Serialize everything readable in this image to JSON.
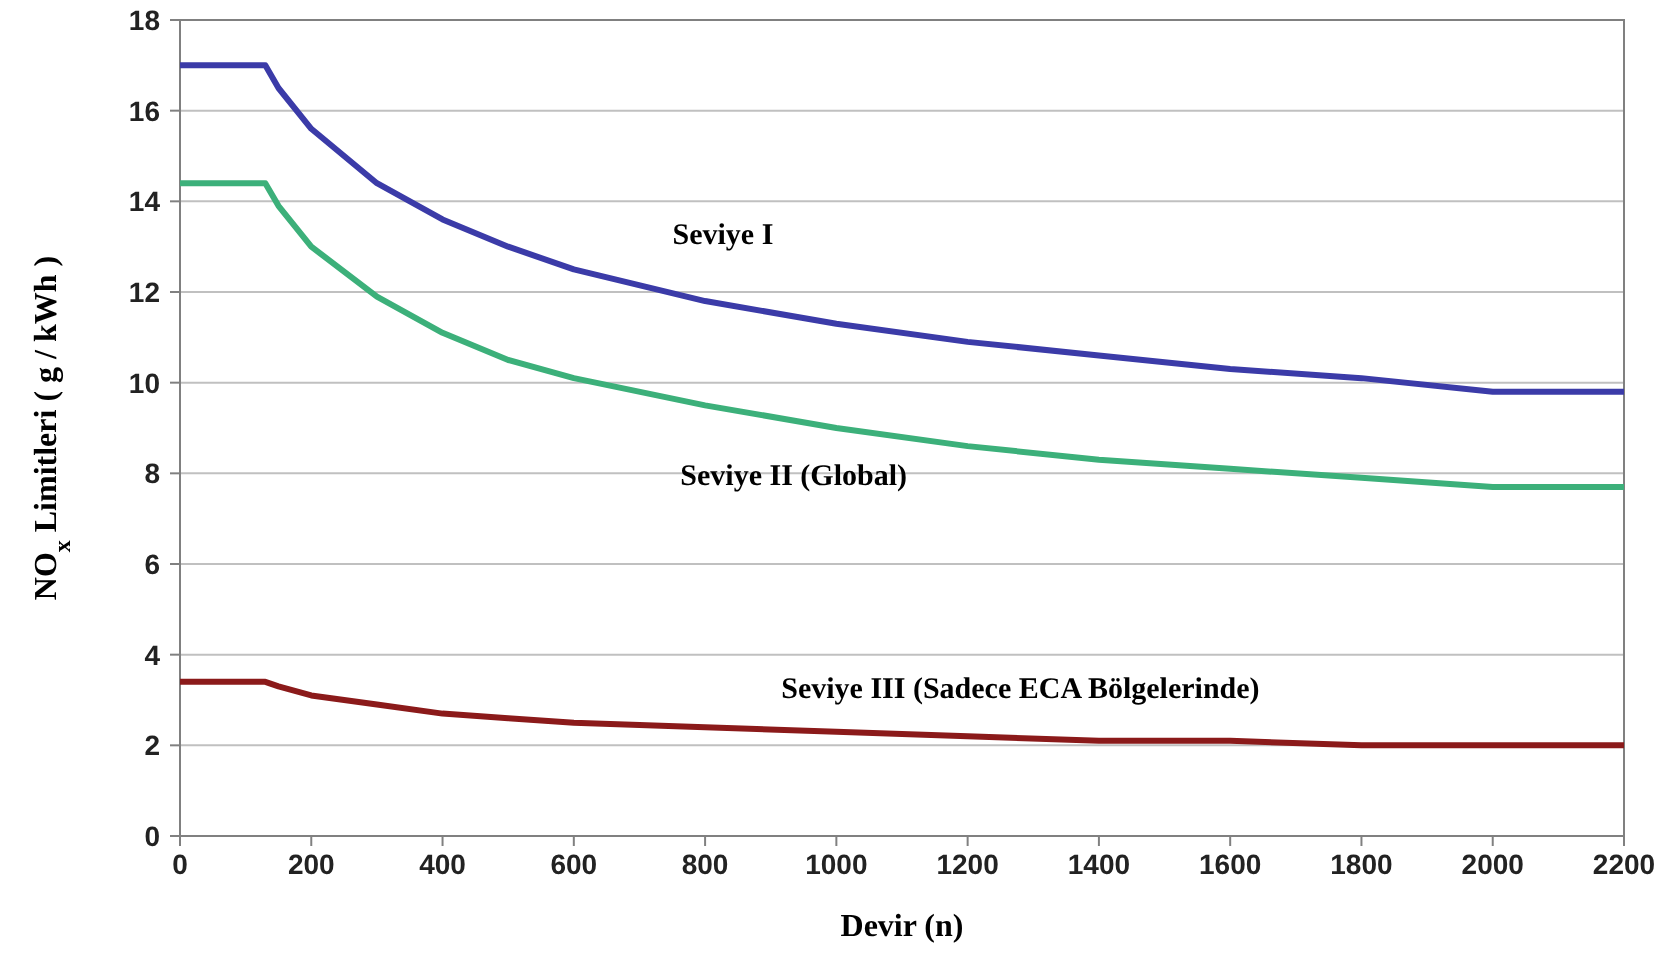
{
  "chart_data": {
    "type": "line",
    "xlabel": "Devir (n)",
    "ylabel": "NO$_{x}$ Limitleri ( g / kWh )",
    "x": [
      0,
      130,
      150,
      200,
      300,
      400,
      500,
      600,
      800,
      1000,
      1200,
      1400,
      1600,
      1800,
      2000,
      2200
    ],
    "series": [
      {
        "color": "#3b3ba8",
        "values": [
          17,
          17,
          16.5,
          15.6,
          14.4,
          13.6,
          13,
          12.5,
          11.8,
          11.3,
          10.9,
          10.6,
          10.3,
          10.1,
          9.8,
          9.8
        ]
      },
      {
        "color": "#3cb07a",
        "values": [
          14.4,
          14.4,
          13.9,
          13,
          11.9,
          11.1,
          10.5,
          10.1,
          9.5,
          9,
          8.6,
          8.3,
          8.1,
          7.9,
          7.7,
          7.7
        ]
      },
      {
        "color": "#8b1a1a",
        "values": [
          3.4,
          3.4,
          3.3,
          3.1,
          2.9,
          2.7,
          2.6,
          2.5,
          2.4,
          2.3,
          2.2,
          2.1,
          2.1,
          2,
          2,
          2
        ]
      }
    ],
    "annotations": [
      "Seviye I",
      "Seviye II (Global)",
      "Seviye III (Sadece ECA Bölgelerinde)"
    ],
    "xlim": [
      0,
      2200
    ],
    "xticks": [
      0,
      200,
      400,
      600,
      800,
      1000,
      1200,
      1400,
      1600,
      1800,
      2000,
      2200
    ],
    "ylim": [
      0,
      18
    ],
    "yticks": [
      0,
      2,
      4,
      6,
      8,
      10,
      12,
      14,
      16,
      18
    ],
    "grid": "y",
    "marker": "none",
    "line_style": "solid"
  }
}
